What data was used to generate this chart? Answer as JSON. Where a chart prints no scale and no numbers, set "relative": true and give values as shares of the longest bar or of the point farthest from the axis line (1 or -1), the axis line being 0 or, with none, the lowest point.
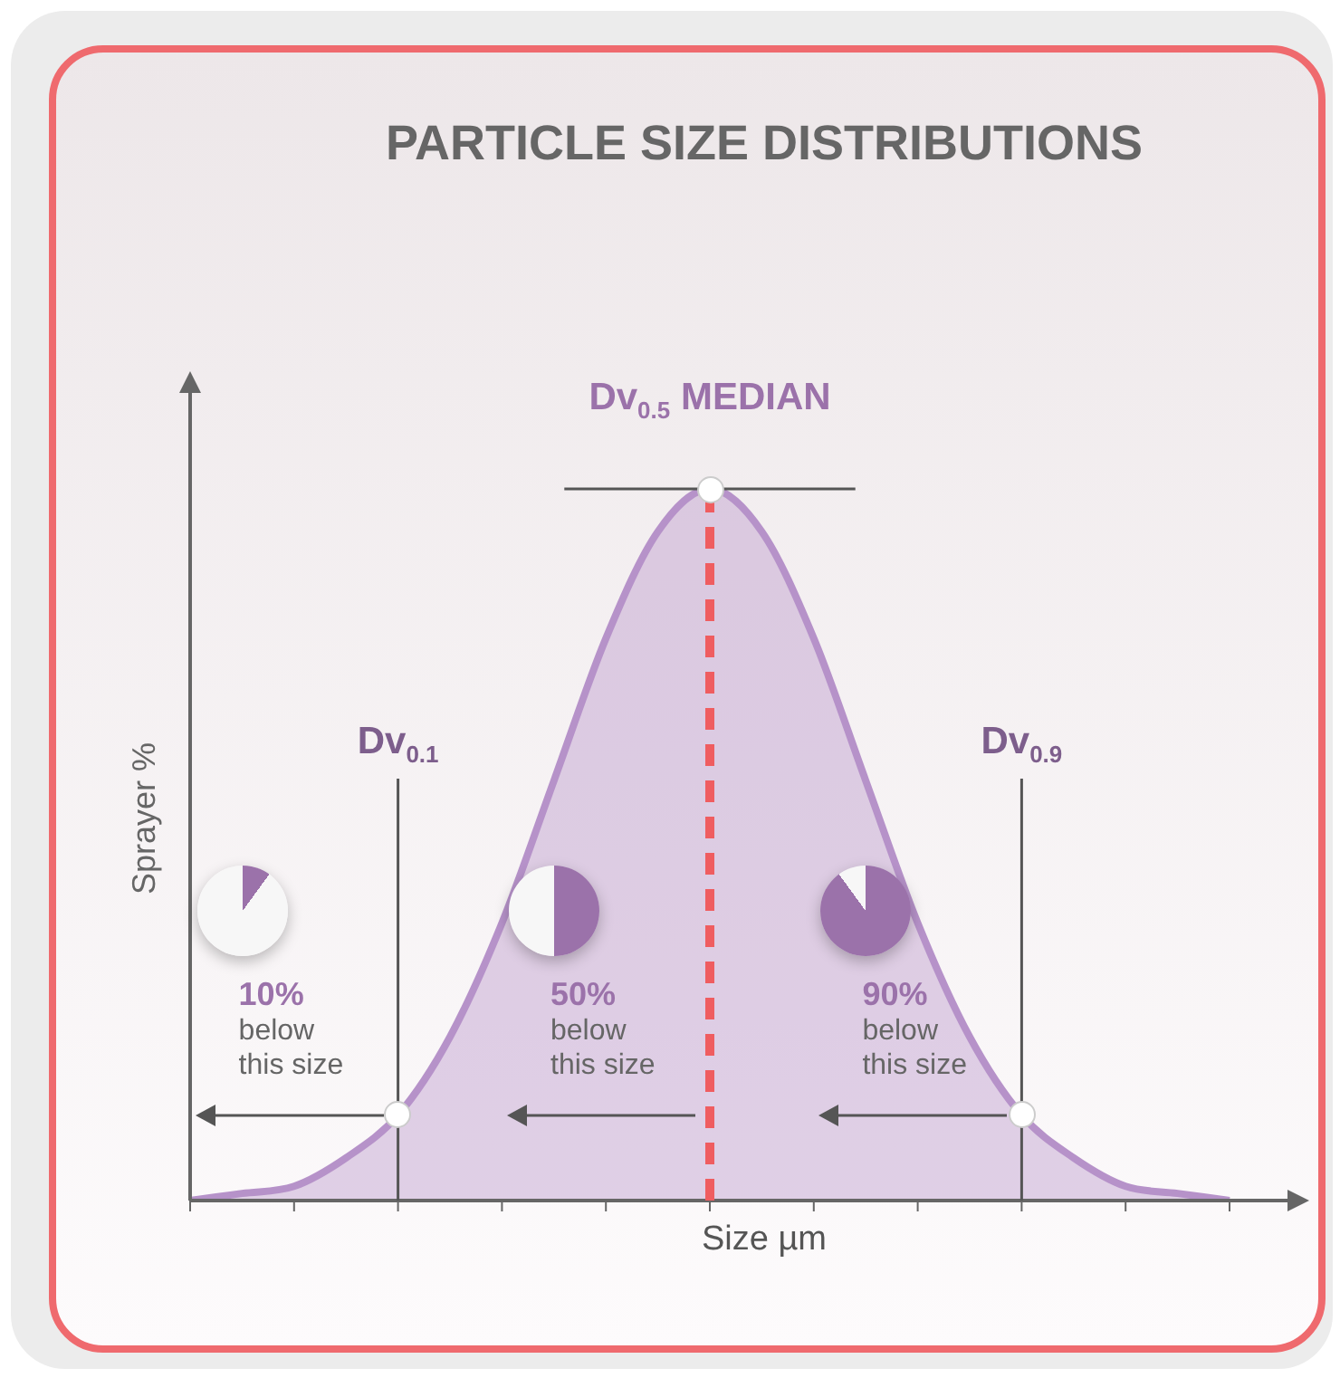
{
  "chart_data": {
    "type": "area",
    "title": "PARTICLE SIZE DISTRIBUTIONS",
    "xlabel": "Size µm",
    "ylabel": "Sprayer %",
    "relative": true,
    "categories": [
      null,
      null,
      null,
      null,
      null,
      null,
      null,
      null,
      null,
      null,
      null,
      null,
      null,
      null,
      null,
      null,
      null,
      null,
      null,
      null,
      null
    ],
    "series": [
      {
        "color": "#b692c9",
        "values": [
          0,
          0.01,
          0.02,
          0.06,
          0.12,
          0.23,
          0.39,
          0.59,
          0.79,
          0.94,
          1,
          0.94,
          0.79,
          0.59,
          0.39,
          0.23,
          0.12,
          0.06,
          0.02,
          0.01,
          0
        ]
      }
    ],
    "ref_lines": [
      {
        "axis": "y",
        "value": 1,
        "color": "#555555"
      }
    ],
    "annotations": [
      "Dv$_{0.1}$",
      "Dv$_{0.5}$ MEDIAN",
      "Dv$_{0.9}$",
      "10%\nbelow\nthis size",
      "50%\nbelow\nthis size",
      "90%\nbelow\nthis size"
    ]
  }
}
